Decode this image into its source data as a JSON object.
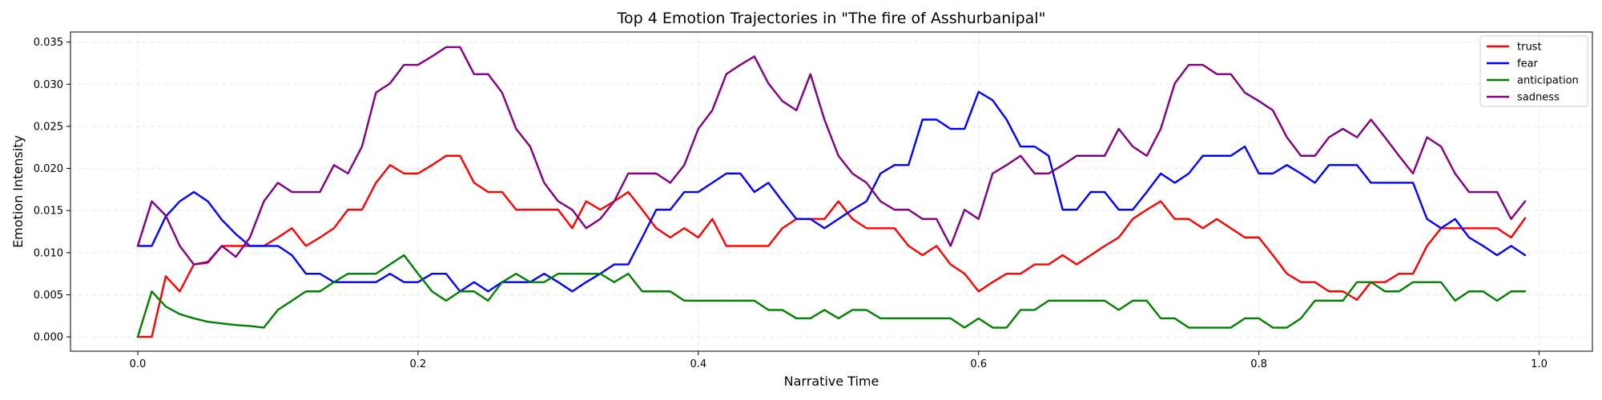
{
  "chart_data": {
    "type": "line",
    "title": "Top 4 Emotion Trajectories in \"The fire of Asshurbanipal\"",
    "xlabel": "Narrative Time",
    "ylabel": "Emotion Intensity",
    "xlim": [
      -0.048,
      1.038
    ],
    "ylim": [
      -0.0017,
      0.0362
    ],
    "xticks": [
      0.0,
      0.2,
      0.4,
      0.6,
      0.8,
      1.0
    ],
    "xtick_labels": [
      "0.0",
      "0.2",
      "0.4",
      "0.6",
      "0.8",
      "1.0"
    ],
    "yticks": [
      0.0,
      0.005,
      0.01,
      0.015,
      0.02,
      0.025,
      0.03,
      0.035
    ],
    "ytick_labels": [
      "0.000",
      "0.005",
      "0.010",
      "0.015",
      "0.020",
      "0.025",
      "0.030",
      "0.035"
    ],
    "grid": true,
    "legend_position": "top-right",
    "x_step": 0.01,
    "series": [
      {
        "name": "trust",
        "color": "#ff0000",
        "values": [
          0.0,
          0.0,
          0.0072,
          0.0054,
          0.0086,
          0.0088,
          0.0108,
          0.0108,
          0.0108,
          0.0108,
          0.0118,
          0.0129,
          0.0108,
          0.0118,
          0.0129,
          0.0151,
          0.0151,
          0.0183,
          0.0204,
          0.0194,
          0.0194,
          0.0204,
          0.0215,
          0.0215,
          0.0183,
          0.0172,
          0.0172,
          0.0151,
          0.0151,
          0.0151,
          0.0151,
          0.0129,
          0.0161,
          0.0151,
          0.0161,
          0.0172,
          0.0151,
          0.0129,
          0.0118,
          0.0129,
          0.0118,
          0.014,
          0.0108,
          0.0108,
          0.0108,
          0.0108,
          0.0129,
          0.014,
          0.014,
          0.014,
          0.0161,
          0.014,
          0.0129,
          0.0129,
          0.0129,
          0.0108,
          0.0097,
          0.0108,
          0.0086,
          0.0075,
          0.0054,
          0.0065,
          0.0075,
          0.0075,
          0.0086,
          0.0086,
          0.0097,
          0.0086,
          0.0097,
          0.0108,
          0.0118,
          0.014,
          0.0151,
          0.0161,
          0.014,
          0.014,
          0.0129,
          0.014,
          0.0129,
          0.0118,
          0.0118,
          0.0097,
          0.0075,
          0.0065,
          0.0065,
          0.0054,
          0.0054,
          0.0044,
          0.0065,
          0.0065,
          0.0075,
          0.0075,
          0.0108,
          0.0129,
          0.0129,
          0.0129,
          0.0129,
          0.0129,
          0.0118,
          0.0141
        ]
      },
      {
        "name": "fear",
        "color": "#0000ff",
        "values": [
          0.0108,
          0.0108,
          0.0143,
          0.0161,
          0.0172,
          0.0161,
          0.0139,
          0.0122,
          0.0108,
          0.0108,
          0.0108,
          0.0097,
          0.0075,
          0.0075,
          0.0065,
          0.0065,
          0.0065,
          0.0065,
          0.0075,
          0.0065,
          0.0065,
          0.0075,
          0.0075,
          0.0054,
          0.0065,
          0.0054,
          0.0065,
          0.0065,
          0.0065,
          0.0075,
          0.0065,
          0.0054,
          0.0065,
          0.0075,
          0.0086,
          0.0086,
          0.0118,
          0.0151,
          0.0151,
          0.0172,
          0.0172,
          0.0183,
          0.0194,
          0.0194,
          0.0172,
          0.0183,
          0.0161,
          0.014,
          0.014,
          0.0129,
          0.014,
          0.0151,
          0.0161,
          0.0194,
          0.0204,
          0.0204,
          0.0258,
          0.0258,
          0.0247,
          0.0247,
          0.0291,
          0.0281,
          0.0258,
          0.0226,
          0.0226,
          0.0215,
          0.0151,
          0.0151,
          0.0172,
          0.0172,
          0.0151,
          0.0151,
          0.0172,
          0.0194,
          0.0183,
          0.0194,
          0.0215,
          0.0215,
          0.0215,
          0.0226,
          0.0194,
          0.0194,
          0.0204,
          0.0194,
          0.0183,
          0.0204,
          0.0204,
          0.0204,
          0.0183,
          0.0183,
          0.0183,
          0.0183,
          0.014,
          0.0129,
          0.014,
          0.0118,
          0.0108,
          0.0097,
          0.0108,
          0.0097
        ]
      },
      {
        "name": "anticipation",
        "color": "#008000",
        "values": [
          0.0,
          0.0054,
          0.0036,
          0.0027,
          0.0022,
          0.0018,
          0.0016,
          0.0014,
          0.0013,
          0.0011,
          0.0032,
          0.0043,
          0.0054,
          0.0054,
          0.0065,
          0.0075,
          0.0075,
          0.0075,
          0.0086,
          0.0097,
          0.0075,
          0.0054,
          0.0043,
          0.0054,
          0.0054,
          0.0043,
          0.0065,
          0.0075,
          0.0065,
          0.0065,
          0.0075,
          0.0075,
          0.0075,
          0.0075,
          0.0065,
          0.0075,
          0.0054,
          0.0054,
          0.0054,
          0.0043,
          0.0043,
          0.0043,
          0.0043,
          0.0043,
          0.0043,
          0.0032,
          0.0032,
          0.0022,
          0.0022,
          0.0032,
          0.0022,
          0.0032,
          0.0032,
          0.0022,
          0.0022,
          0.0022,
          0.0022,
          0.0022,
          0.0022,
          0.0011,
          0.0022,
          0.0011,
          0.0011,
          0.0032,
          0.0032,
          0.0043,
          0.0043,
          0.0043,
          0.0043,
          0.0043,
          0.0032,
          0.0043,
          0.0043,
          0.0022,
          0.0022,
          0.0011,
          0.0011,
          0.0011,
          0.0011,
          0.0022,
          0.0022,
          0.0011,
          0.0011,
          0.0022,
          0.0043,
          0.0043,
          0.0043,
          0.0065,
          0.0065,
          0.0054,
          0.0054,
          0.0065,
          0.0065,
          0.0065,
          0.0043,
          0.0054,
          0.0054,
          0.0043,
          0.0054,
          0.0054
        ]
      },
      {
        "name": "sadness",
        "color": "#800080",
        "values": [
          0.0108,
          0.0161,
          0.0144,
          0.0108,
          0.0086,
          0.0089,
          0.0108,
          0.0095,
          0.0118,
          0.0161,
          0.0183,
          0.0172,
          0.0172,
          0.0172,
          0.0204,
          0.0194,
          0.0226,
          0.029,
          0.0301,
          0.0323,
          0.0323,
          0.0333,
          0.0344,
          0.0344,
          0.0312,
          0.0312,
          0.029,
          0.0247,
          0.0226,
          0.0183,
          0.0161,
          0.0151,
          0.0129,
          0.014,
          0.0161,
          0.0194,
          0.0194,
          0.0194,
          0.0183,
          0.0204,
          0.0247,
          0.0269,
          0.0312,
          0.0323,
          0.0333,
          0.0301,
          0.028,
          0.0269,
          0.0312,
          0.0258,
          0.0215,
          0.0194,
          0.0183,
          0.0161,
          0.0151,
          0.0151,
          0.014,
          0.014,
          0.0108,
          0.0151,
          0.014,
          0.0194,
          0.0204,
          0.0215,
          0.0194,
          0.0194,
          0.0204,
          0.0215,
          0.0215,
          0.0215,
          0.0247,
          0.0226,
          0.0215,
          0.0247,
          0.0301,
          0.0323,
          0.0323,
          0.0312,
          0.0312,
          0.029,
          0.028,
          0.0269,
          0.0237,
          0.0215,
          0.0215,
          0.0237,
          0.0247,
          0.0237,
          0.0258,
          0.0237,
          0.0215,
          0.0194,
          0.0237,
          0.0226,
          0.0194,
          0.0172,
          0.0172,
          0.0172,
          0.014,
          0.0161
        ]
      }
    ]
  }
}
